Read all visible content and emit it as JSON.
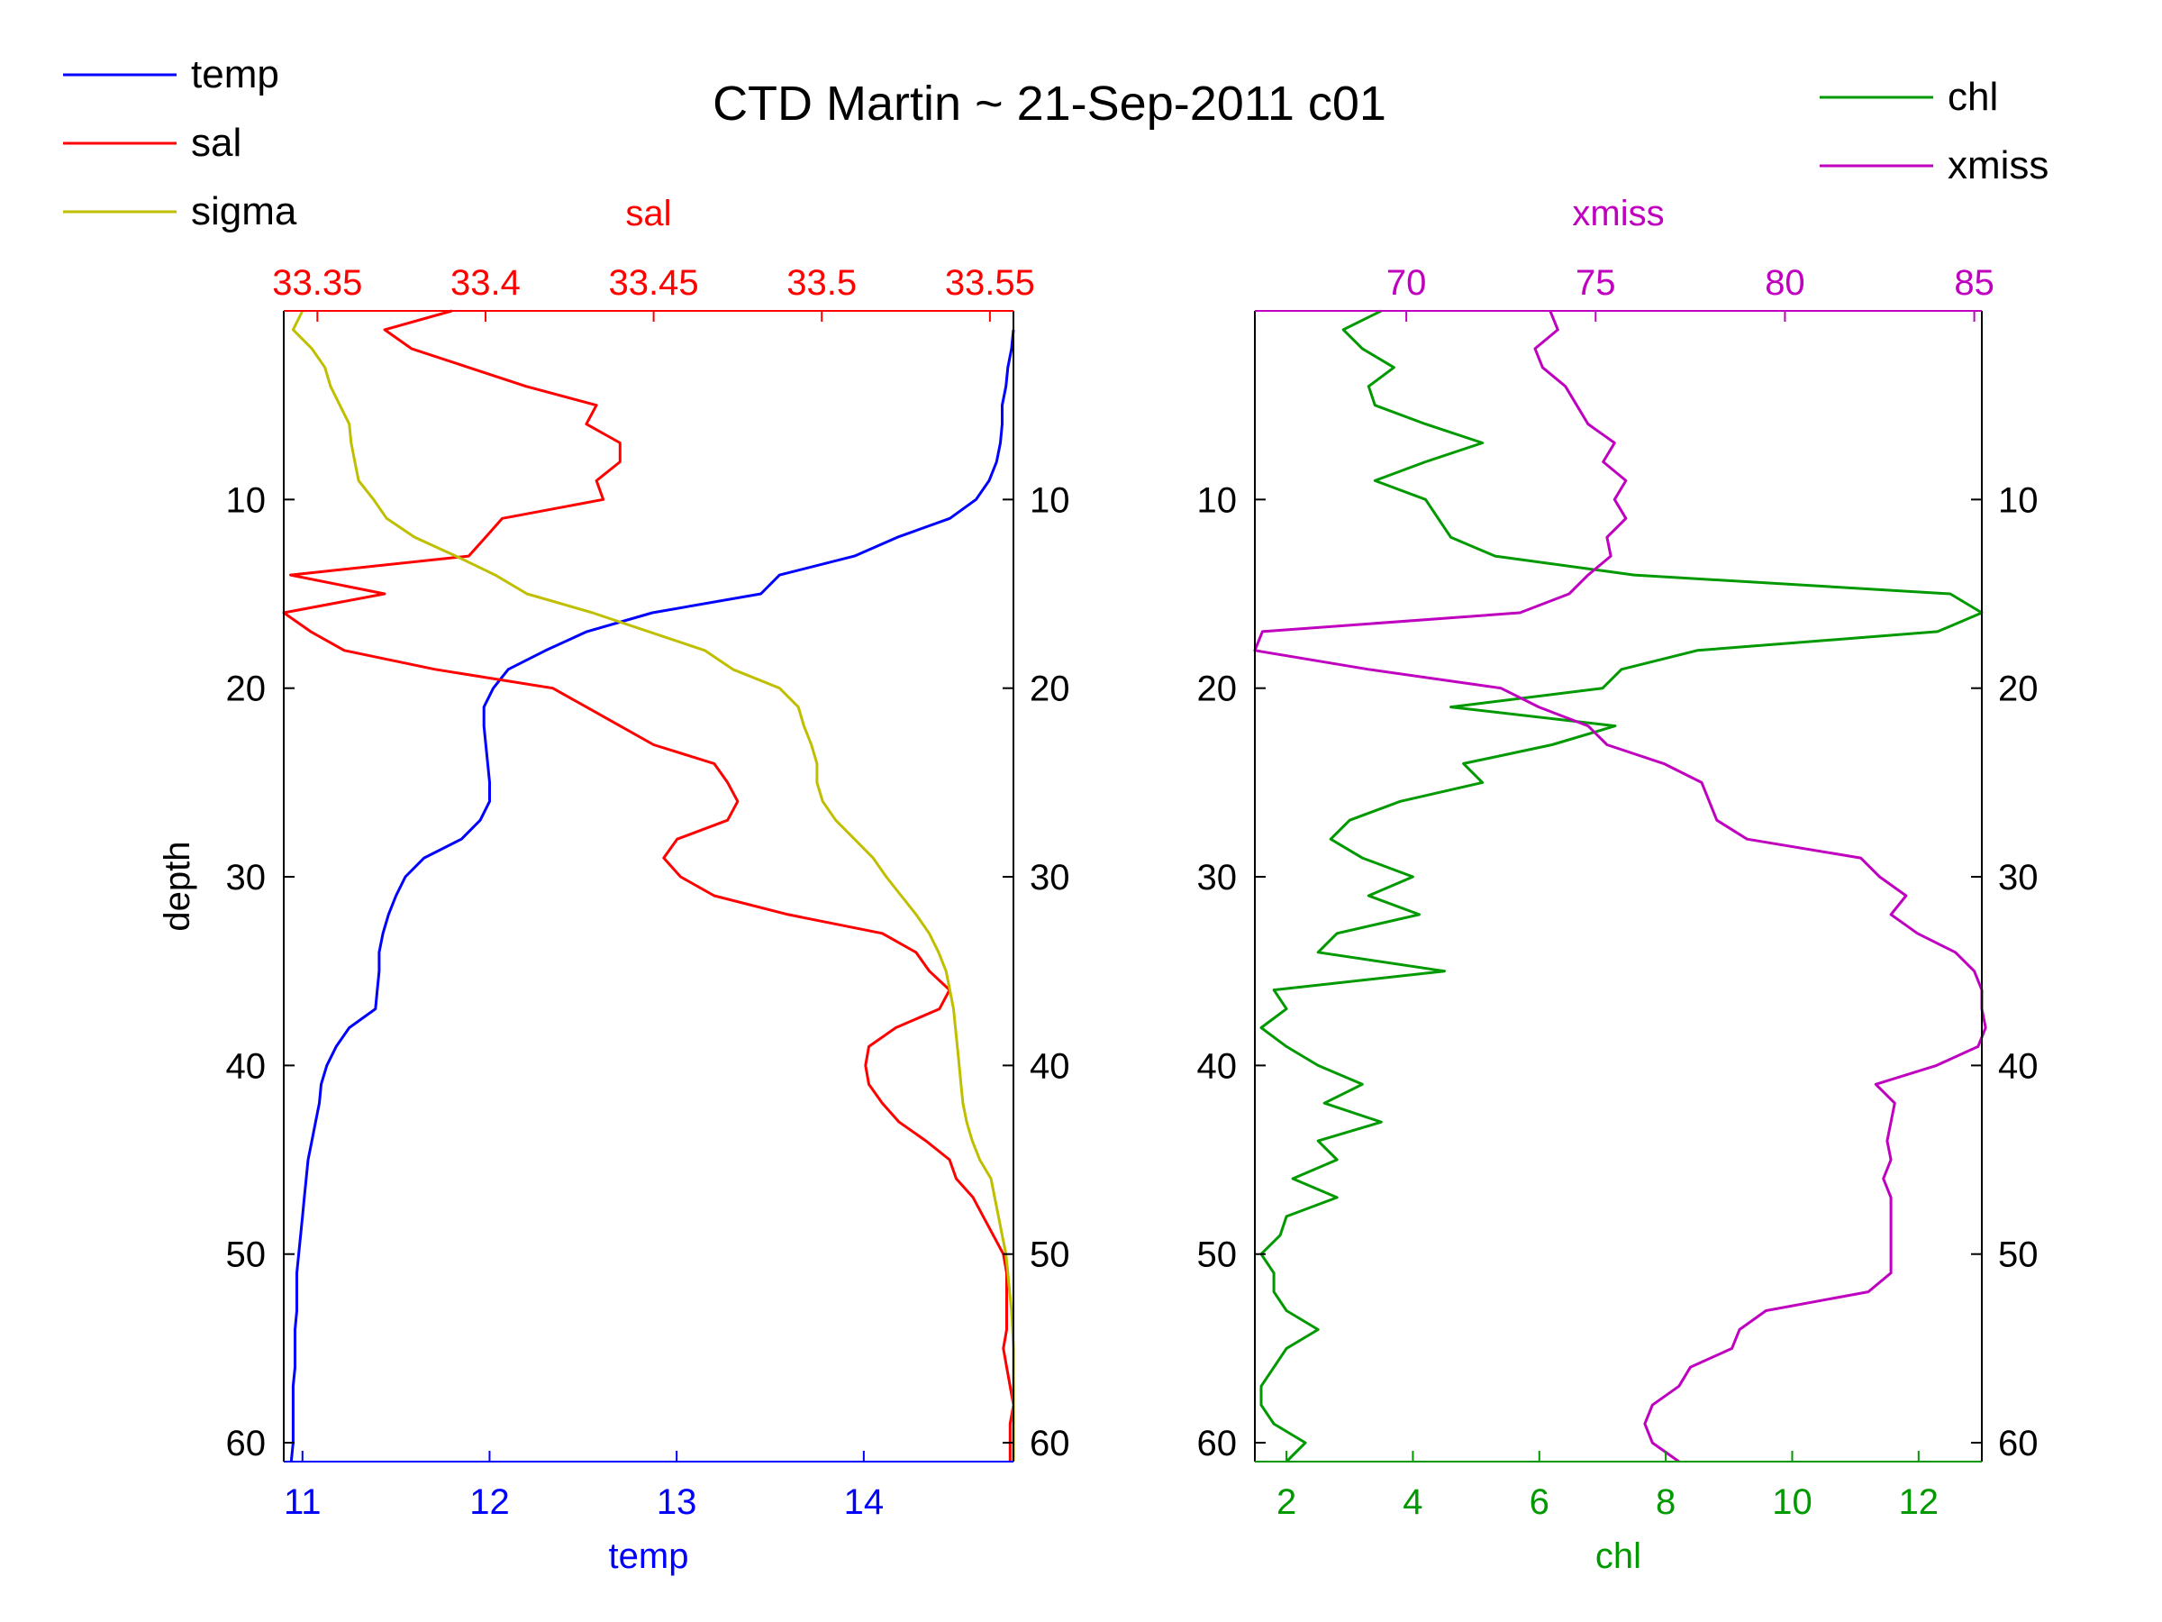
{
  "title": "CTD Martin ~ 21-Sep-2011 c01",
  "colors": {
    "temp": "#0000ff",
    "sal": "#ff0000",
    "sigma": "#bfbf00",
    "chl": "#009900",
    "xmiss": "#bf00bf",
    "axis": "#000000"
  },
  "chart_data": [
    {
      "type": "line",
      "orientation": "profile (x = value, y = depth, depth increasing downward)",
      "ylabel": "depth",
      "ylim": [
        0,
        61
      ],
      "yticks": [
        10,
        20,
        30,
        40,
        50,
        60
      ],
      "ytick_labels": [
        "10",
        "20",
        "30",
        "40",
        "50",
        "60"
      ],
      "legend": {
        "position": "top-left",
        "entries": [
          "temp",
          "sal",
          "sigma"
        ]
      },
      "bottom_axis": {
        "label": "temp",
        "xlim": [
          10.9,
          14.8
        ],
        "ticks": [
          11,
          12,
          13,
          14
        ],
        "tick_labels": [
          "11",
          "12",
          "13",
          "14"
        ],
        "color": "#0000ff"
      },
      "top_axis": {
        "label": "sal",
        "xlim": [
          33.34,
          33.557
        ],
        "ticks": [
          33.35,
          33.4,
          33.45,
          33.5,
          33.55
        ],
        "tick_labels": [
          "33.35",
          "33.4",
          "33.45",
          "33.5",
          "33.55"
        ],
        "color": "#ff0000"
      },
      "series": [
        {
          "name": "temp",
          "axis": "bottom",
          "depth": [
            1,
            2,
            3,
            4,
            5,
            6,
            7,
            8,
            9,
            10,
            11,
            12,
            13,
            14,
            15,
            16,
            17,
            18,
            19,
            20,
            21,
            22,
            23,
            24,
            25,
            26,
            27,
            28,
            29,
            30,
            31,
            32,
            33,
            34,
            35,
            36,
            37,
            38,
            39,
            40,
            41,
            42,
            43,
            44,
            45,
            46,
            47,
            48,
            49,
            50,
            51,
            52,
            53,
            54,
            55,
            56,
            57,
            58,
            59,
            60,
            61
          ],
          "values": [
            14.8,
            14.79,
            14.77,
            14.76,
            14.74,
            14.74,
            14.73,
            14.71,
            14.67,
            14.6,
            14.46,
            14.18,
            13.95,
            13.55,
            13.45,
            12.87,
            12.52,
            12.3,
            12.1,
            12.02,
            11.97,
            11.97,
            11.98,
            11.99,
            12.0,
            12.0,
            11.95,
            11.85,
            11.65,
            11.55,
            11.5,
            11.46,
            11.43,
            11.41,
            11.41,
            11.4,
            11.39,
            11.25,
            11.18,
            11.13,
            11.1,
            11.09,
            11.07,
            11.05,
            11.03,
            11.02,
            11.01,
            11.0,
            10.99,
            10.98,
            10.97,
            10.97,
            10.97,
            10.96,
            10.96,
            10.96,
            10.95,
            10.95,
            10.95,
            10.95,
            10.94
          ]
        },
        {
          "name": "sal",
          "axis": "top",
          "depth": [
            0,
            1,
            2,
            3,
            4,
            5,
            6,
            7,
            8,
            9,
            10,
            11,
            12,
            13,
            14,
            15,
            16,
            17,
            18,
            19,
            20,
            21,
            22,
            23,
            24,
            25,
            26,
            27,
            28,
            29,
            30,
            31,
            32,
            33,
            34,
            35,
            36,
            37,
            38,
            39,
            40,
            41,
            42,
            43,
            44,
            45,
            46,
            47,
            48,
            49,
            50,
            51,
            52,
            53,
            54,
            55,
            56,
            57,
            58,
            59,
            60,
            61
          ],
          "values": [
            33.39,
            33.37,
            33.378,
            33.395,
            33.412,
            33.433,
            33.43,
            33.44,
            33.44,
            33.433,
            33.435,
            33.405,
            33.4,
            33.395,
            33.342,
            33.37,
            33.34,
            33.348,
            33.358,
            33.385,
            33.42,
            33.43,
            33.44,
            33.45,
            33.468,
            33.472,
            33.475,
            33.472,
            33.457,
            33.453,
            33.458,
            33.468,
            33.49,
            33.518,
            33.528,
            33.532,
            33.538,
            33.535,
            33.522,
            33.514,
            33.513,
            33.514,
            33.518,
            33.523,
            33.531,
            33.538,
            33.54,
            33.545,
            33.548,
            33.551,
            33.554,
            33.555,
            33.555,
            33.555,
            33.555,
            33.554,
            33.555,
            33.556,
            33.557,
            33.556,
            33.556,
            33.556
          ]
        },
        {
          "name": "sigma",
          "axis": "bottom",
          "depth": [
            0,
            1,
            2,
            3,
            4,
            5,
            6,
            7,
            8,
            9,
            10,
            11,
            12,
            13,
            14,
            15,
            16,
            17,
            18,
            19,
            20,
            21,
            22,
            23,
            24,
            25,
            26,
            27,
            28,
            29,
            30,
            31,
            32,
            33,
            34,
            35,
            36,
            37,
            38,
            39,
            40,
            41,
            42,
            43,
            44,
            45,
            46,
            47,
            48,
            49,
            50,
            51,
            52,
            53,
            54,
            55,
            56,
            57,
            58,
            59,
            60,
            61
          ],
          "values": [
            11.0,
            10.95,
            11.05,
            11.12,
            11.15,
            11.2,
            11.25,
            11.26,
            11.28,
            11.3,
            11.38,
            11.45,
            11.6,
            11.82,
            12.03,
            12.2,
            12.55,
            12.85,
            13.15,
            13.3,
            13.55,
            13.65,
            13.68,
            13.72,
            13.75,
            13.75,
            13.78,
            13.85,
            13.95,
            14.05,
            14.12,
            14.2,
            14.28,
            14.35,
            14.4,
            14.44,
            14.46,
            14.48,
            14.49,
            14.5,
            14.51,
            14.52,
            14.53,
            14.55,
            14.58,
            14.62,
            14.68,
            14.7,
            14.72,
            14.74,
            14.76,
            14.77,
            14.78,
            14.79,
            14.795,
            14.8,
            14.8,
            14.8,
            14.8,
            14.8,
            14.8,
            14.8
          ]
        }
      ]
    },
    {
      "type": "line",
      "orientation": "profile (x = value, y = depth, depth increasing downward)",
      "ylabel": "",
      "ylim": [
        0,
        61
      ],
      "yticks": [
        10,
        20,
        30,
        40,
        50,
        60
      ],
      "ytick_labels": [
        "10",
        "20",
        "30",
        "40",
        "50",
        "60"
      ],
      "legend": {
        "position": "top-right",
        "entries": [
          "chl",
          "xmiss"
        ]
      },
      "bottom_axis": {
        "label": "chl",
        "xlim": [
          1.5,
          13.0
        ],
        "ticks": [
          2,
          4,
          6,
          8,
          10,
          12
        ],
        "tick_labels": [
          "2",
          "4",
          "6",
          "8",
          "10",
          "12"
        ],
        "color": "#009900"
      },
      "top_axis": {
        "label": "xmiss",
        "xlim": [
          66.0,
          85.2
        ],
        "ticks": [
          70,
          75,
          80,
          85
        ],
        "tick_labels": [
          "70",
          "75",
          "80",
          "85"
        ],
        "color": "#bf00bf"
      },
      "series": [
        {
          "name": "chl",
          "axis": "bottom",
          "depth": [
            0,
            1,
            2,
            3,
            4,
            5,
            6,
            7,
            8,
            9,
            10,
            11,
            12,
            13,
            14,
            15,
            16,
            17,
            18,
            19,
            20,
            21,
            22,
            23,
            24,
            25,
            26,
            27,
            28,
            29,
            30,
            31,
            32,
            33,
            34,
            35,
            36,
            37,
            38,
            39,
            40,
            41,
            42,
            43,
            44,
            45,
            46,
            47,
            48,
            49,
            50,
            51,
            52,
            53,
            54,
            55,
            56,
            57,
            58,
            59,
            60,
            61
          ],
          "values": [
            3.5,
            2.9,
            3.2,
            3.7,
            3.3,
            3.4,
            4.2,
            5.1,
            4.2,
            3.4,
            4.2,
            4.4,
            4.6,
            5.3,
            7.5,
            12.5,
            13.0,
            12.3,
            8.5,
            7.3,
            7.0,
            4.6,
            7.2,
            6.2,
            4.8,
            5.1,
            3.8,
            3.0,
            2.7,
            3.2,
            4.0,
            3.3,
            4.1,
            2.8,
            2.5,
            4.5,
            1.8,
            2.0,
            1.6,
            2.0,
            2.5,
            3.2,
            2.6,
            3.5,
            2.5,
            2.8,
            2.1,
            2.8,
            2.0,
            1.9,
            1.6,
            1.8,
            1.8,
            2.0,
            2.5,
            2.0,
            1.8,
            1.6,
            1.6,
            1.8,
            2.3,
            2.0
          ]
        },
        {
          "name": "xmiss",
          "axis": "top",
          "depth": [
            0,
            1,
            2,
            3,
            4,
            5,
            6,
            7,
            8,
            9,
            10,
            11,
            12,
            13,
            14,
            15,
            16,
            17,
            18,
            19,
            20,
            21,
            22,
            23,
            24,
            25,
            26,
            27,
            28,
            29,
            30,
            31,
            32,
            33,
            34,
            35,
            36,
            37,
            38,
            39,
            40,
            41,
            42,
            43,
            44,
            45,
            46,
            47,
            48,
            49,
            50,
            51,
            52,
            53,
            54,
            55,
            56,
            57,
            58,
            59,
            60,
            61
          ],
          "values": [
            73.8,
            74.0,
            73.4,
            73.6,
            74.2,
            74.5,
            74.8,
            75.5,
            75.2,
            75.8,
            75.5,
            75.8,
            75.3,
            75.4,
            74.8,
            74.3,
            73.0,
            66.2,
            66.0,
            69.0,
            72.5,
            73.5,
            74.8,
            75.3,
            76.8,
            77.8,
            78.0,
            78.2,
            79.0,
            82.0,
            82.5,
            83.2,
            82.8,
            83.5,
            84.5,
            85.0,
            85.2,
            85.2,
            85.3,
            85.1,
            84.0,
            82.4,
            82.9,
            82.8,
            82.7,
            82.8,
            82.6,
            82.8,
            82.8,
            82.8,
            82.8,
            82.8,
            82.2,
            79.5,
            78.8,
            78.6,
            77.5,
            77.2,
            76.5,
            76.3,
            76.5,
            77.2
          ]
        }
      ]
    }
  ]
}
